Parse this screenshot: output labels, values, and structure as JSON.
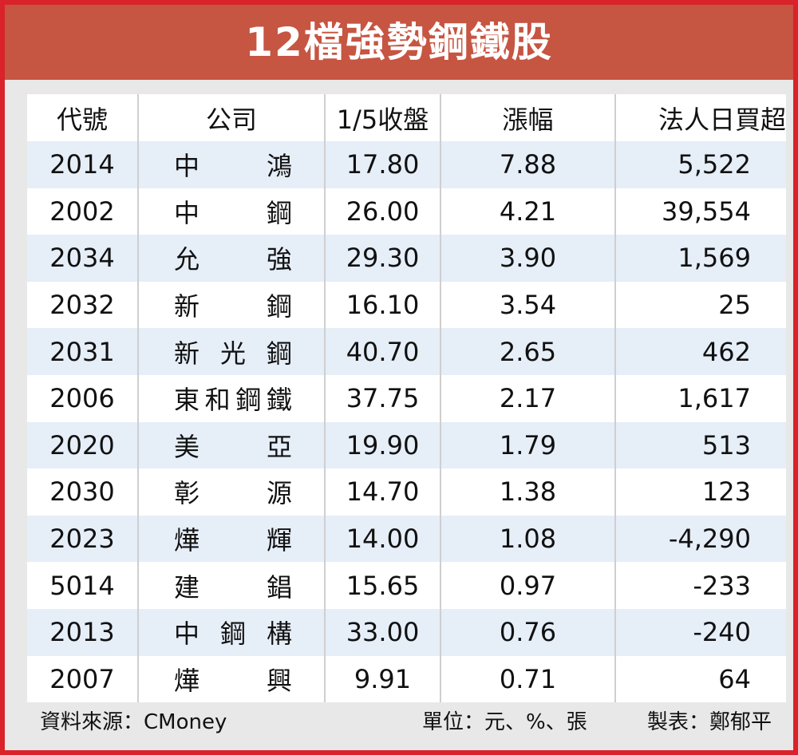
{
  "title": "12檔強勢鋼鐵股",
  "headers": {
    "code": "代號",
    "company": "公司",
    "close": "1/5收盤",
    "change": "漲幅",
    "net_buy": "法人日買超"
  },
  "rows": [
    {
      "code": "2014",
      "name": [
        "中",
        "鴻"
      ],
      "close": "17.80",
      "change": "7.88",
      "net_buy": "5,522"
    },
    {
      "code": "2002",
      "name": [
        "中",
        "鋼"
      ],
      "close": "26.00",
      "change": "4.21",
      "net_buy": "39,554"
    },
    {
      "code": "2034",
      "name": [
        "允",
        "強"
      ],
      "close": "29.30",
      "change": "3.90",
      "net_buy": "1,569"
    },
    {
      "code": "2032",
      "name": [
        "新",
        "鋼"
      ],
      "close": "16.10",
      "change": "3.54",
      "net_buy": "25"
    },
    {
      "code": "2031",
      "name": [
        "新",
        "光",
        "鋼"
      ],
      "close": "40.70",
      "change": "2.65",
      "net_buy": "462"
    },
    {
      "code": "2006",
      "name": [
        "東",
        "和",
        "鋼",
        "鐵"
      ],
      "close": "37.75",
      "change": "2.17",
      "net_buy": "1,617"
    },
    {
      "code": "2020",
      "name": [
        "美",
        "亞"
      ],
      "close": "19.90",
      "change": "1.79",
      "net_buy": "513"
    },
    {
      "code": "2030",
      "name": [
        "彰",
        "源"
      ],
      "close": "14.70",
      "change": "1.38",
      "net_buy": "123"
    },
    {
      "code": "2023",
      "name": [
        "燁",
        "輝"
      ],
      "close": "14.00",
      "change": "1.08",
      "net_buy": "-4,290"
    },
    {
      "code": "5014",
      "name": [
        "建",
        "錩"
      ],
      "close": "15.65",
      "change": "0.97",
      "net_buy": "-233"
    },
    {
      "code": "2013",
      "name": [
        "中",
        "鋼",
        "構"
      ],
      "close": "33.00",
      "change": "0.76",
      "net_buy": "-240"
    },
    {
      "code": "2007",
      "name": [
        "燁",
        "興"
      ],
      "close": "9.91",
      "change": "0.71",
      "net_buy": "64"
    }
  ],
  "footer": {
    "source": "資料來源：CMoney",
    "unit": "單位：元、%、張",
    "maker": "製表：鄭郁平"
  },
  "colors": {
    "title_bg": "#c65542",
    "border": "#d9222a",
    "row_stripe": "#e6eef8"
  }
}
